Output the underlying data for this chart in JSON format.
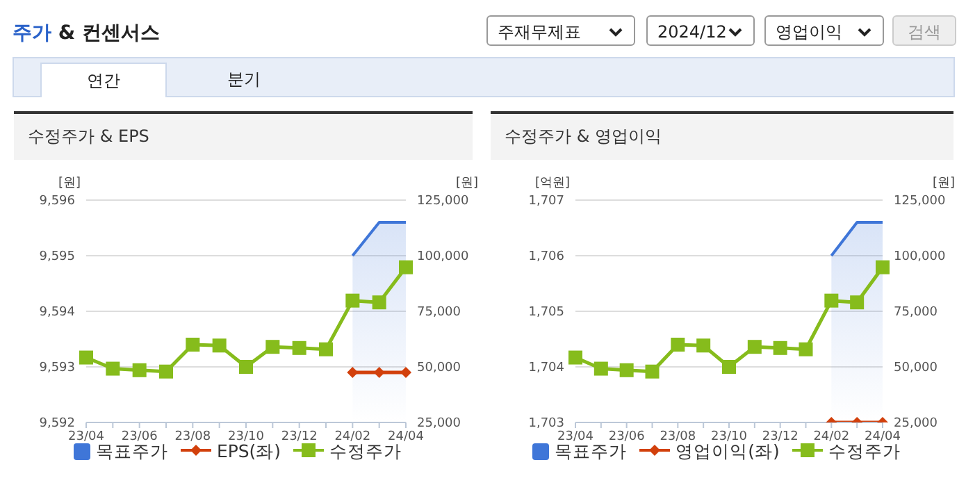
{
  "chart_data": [
    {
      "type": "other",
      "title": "주가 & 컨센서스",
      "annotations": [
        "주재무제표",
        "2024/12",
        "영업이익",
        "검색",
        "연간",
        "분기"
      ]
    },
    {
      "type": "line",
      "title": "수정주가 & EPS",
      "ylabel": "[원]",
      "y2label": "[원]",
      "categories": [
        "23/04",
        null,
        "23/06",
        null,
        "23/08",
        null,
        "23/10",
        null,
        "23/12",
        null,
        "24/02",
        null,
        "24/04"
      ],
      "ylim": [
        9592,
        9596
      ],
      "yticks": [
        {
          "value": 9592,
          "label": "9,592"
        },
        {
          "value": 9593,
          "label": "9,593"
        },
        {
          "value": 9594,
          "label": "9,594"
        },
        {
          "value": 9595,
          "label": "9,595"
        },
        {
          "value": 9596,
          "label": "9,596"
        }
      ],
      "y2lim": [
        25000,
        125000
      ],
      "y2ticks": [
        {
          "value": 25000,
          "label": "25,000"
        },
        {
          "value": 50000,
          "label": "50,000"
        },
        {
          "value": 75000,
          "label": "75,000"
        },
        {
          "value": 100000,
          "label": "100,000"
        },
        {
          "value": 125000,
          "label": "125,000"
        }
      ],
      "grid": "y",
      "legend": "bottom",
      "series": [
        {
          "name": "목표주가",
          "type": "area",
          "axis": "y2",
          "color": "#3f76d8",
          "marker": "none",
          "values": [
            null,
            null,
            null,
            null,
            null,
            null,
            null,
            null,
            null,
            null,
            100000,
            115000,
            115000
          ]
        },
        {
          "name": "EPS(좌)",
          "type": "line",
          "color": "#d2400c",
          "marker": "diamond",
          "values": [
            null,
            null,
            null,
            null,
            null,
            null,
            null,
            null,
            null,
            null,
            9592.9,
            9592.9,
            9592.9
          ]
        },
        {
          "name": "수정주가",
          "type": "line",
          "axis": "y2",
          "color": "#86bc1c",
          "marker": "square",
          "values": [
            54200,
            49200,
            48500,
            47900,
            60000,
            59600,
            50000,
            59000,
            58500,
            57900,
            79800,
            79000,
            94800
          ]
        }
      ]
    },
    {
      "type": "line",
      "title": "수정주가 & 영업이익",
      "ylabel": "[억원]",
      "y2label": "[원]",
      "categories": [
        "23/04",
        null,
        "23/06",
        null,
        "23/08",
        null,
        "23/10",
        null,
        "23/12",
        null,
        "24/02",
        null,
        "24/04"
      ],
      "ylim": [
        1703,
        1707
      ],
      "yticks": [
        {
          "value": 1703,
          "label": "1,703"
        },
        {
          "value": 1704,
          "label": "1,704"
        },
        {
          "value": 1705,
          "label": "1,705"
        },
        {
          "value": 1706,
          "label": "1,706"
        },
        {
          "value": 1707,
          "label": "1,707"
        }
      ],
      "y2lim": [
        25000,
        125000
      ],
      "y2ticks": [
        {
          "value": 25000,
          "label": "25,000"
        },
        {
          "value": 50000,
          "label": "50,000"
        },
        {
          "value": 75000,
          "label": "75,000"
        },
        {
          "value": 100000,
          "label": "100,000"
        },
        {
          "value": 125000,
          "label": "125,000"
        }
      ],
      "grid": "y",
      "legend": "bottom",
      "series": [
        {
          "name": "목표주가",
          "type": "area",
          "axis": "y2",
          "color": "#3f76d8",
          "marker": "none",
          "values": [
            null,
            null,
            null,
            null,
            null,
            null,
            null,
            null,
            null,
            null,
            100000,
            115000,
            115000
          ]
        },
        {
          "name": "영업이익(좌)",
          "type": "line",
          "color": "#d2400c",
          "marker": "diamond",
          "values": [
            null,
            null,
            null,
            null,
            null,
            null,
            null,
            null,
            null,
            null,
            1703,
            1703,
            1703
          ]
        },
        {
          "name": "수정주가",
          "type": "line",
          "axis": "y2",
          "color": "#86bc1c",
          "marker": "square",
          "values": [
            54200,
            49200,
            48500,
            47900,
            60000,
            59600,
            50000,
            59000,
            58500,
            57900,
            79800,
            79000,
            94800
          ]
        }
      ]
    }
  ]
}
